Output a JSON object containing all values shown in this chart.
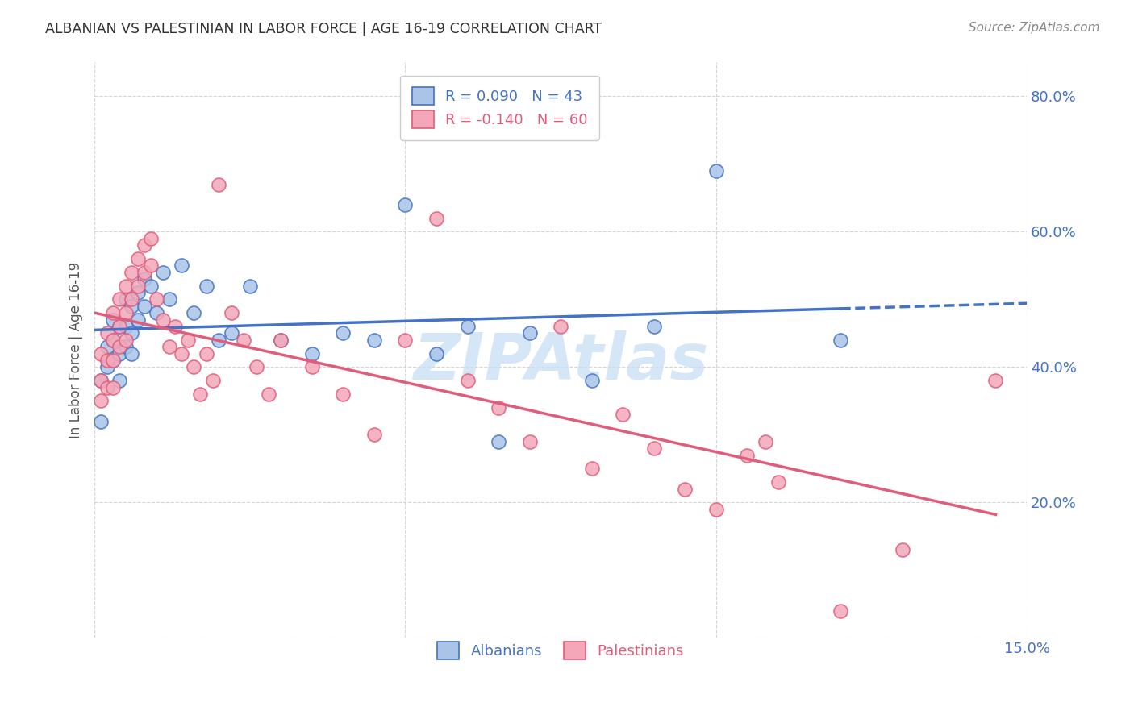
{
  "title": "ALBANIAN VS PALESTINIAN IN LABOR FORCE | AGE 16-19 CORRELATION CHART",
  "source": "Source: ZipAtlas.com",
  "ylabel_axis": "In Labor Force | Age 16-19",
  "xlim": [
    0.0,
    0.15
  ],
  "ylim": [
    0.0,
    0.85
  ],
  "albanian_R": 0.09,
  "albanian_N": 43,
  "palestinian_R": -0.14,
  "palestinian_N": 60,
  "bg_color": "#ffffff",
  "plot_bg_color": "#ffffff",
  "grid_color": "#cccccc",
  "albanian_color": "#aac4e8",
  "albanian_line_color": "#4472c4",
  "palestinian_color": "#f4a7b9",
  "palestinian_line_color": "#e05c7a",
  "watermark_color": "#c8dff5",
  "title_color": "#333333",
  "axis_label_color": "#4472c4",
  "albanian_x": [
    0.001,
    0.001,
    0.002,
    0.002,
    0.003,
    0.003,
    0.003,
    0.004,
    0.004,
    0.004,
    0.005,
    0.005,
    0.005,
    0.006,
    0.006,
    0.006,
    0.007,
    0.007,
    0.008,
    0.008,
    0.009,
    0.01,
    0.011,
    0.012,
    0.014,
    0.016,
    0.018,
    0.02,
    0.022,
    0.025,
    0.03,
    0.035,
    0.04,
    0.045,
    0.05,
    0.055,
    0.06,
    0.065,
    0.07,
    0.08,
    0.09,
    0.1,
    0.12
  ],
  "albanian_y": [
    0.38,
    0.32,
    0.43,
    0.4,
    0.47,
    0.44,
    0.41,
    0.46,
    0.42,
    0.38,
    0.5,
    0.46,
    0.43,
    0.49,
    0.45,
    0.42,
    0.51,
    0.47,
    0.53,
    0.49,
    0.52,
    0.48,
    0.54,
    0.5,
    0.55,
    0.48,
    0.52,
    0.44,
    0.45,
    0.52,
    0.44,
    0.42,
    0.45,
    0.44,
    0.64,
    0.42,
    0.46,
    0.29,
    0.45,
    0.38,
    0.46,
    0.69,
    0.44
  ],
  "palestinian_x": [
    0.001,
    0.001,
    0.001,
    0.002,
    0.002,
    0.002,
    0.003,
    0.003,
    0.003,
    0.003,
    0.004,
    0.004,
    0.004,
    0.005,
    0.005,
    0.005,
    0.006,
    0.006,
    0.007,
    0.007,
    0.008,
    0.008,
    0.009,
    0.009,
    0.01,
    0.011,
    0.012,
    0.013,
    0.014,
    0.015,
    0.016,
    0.017,
    0.018,
    0.019,
    0.02,
    0.022,
    0.024,
    0.026,
    0.028,
    0.03,
    0.035,
    0.04,
    0.045,
    0.05,
    0.055,
    0.06,
    0.065,
    0.07,
    0.075,
    0.08,
    0.085,
    0.09,
    0.095,
    0.1,
    0.105,
    0.108,
    0.11,
    0.12,
    0.13,
    0.145
  ],
  "palestinian_y": [
    0.42,
    0.38,
    0.35,
    0.45,
    0.41,
    0.37,
    0.48,
    0.44,
    0.41,
    0.37,
    0.5,
    0.46,
    0.43,
    0.52,
    0.48,
    0.44,
    0.54,
    0.5,
    0.56,
    0.52,
    0.58,
    0.54,
    0.59,
    0.55,
    0.5,
    0.47,
    0.43,
    0.46,
    0.42,
    0.44,
    0.4,
    0.36,
    0.42,
    0.38,
    0.67,
    0.48,
    0.44,
    0.4,
    0.36,
    0.44,
    0.4,
    0.36,
    0.3,
    0.44,
    0.62,
    0.38,
    0.34,
    0.29,
    0.46,
    0.25,
    0.33,
    0.28,
    0.22,
    0.19,
    0.27,
    0.29,
    0.23,
    0.04,
    0.13,
    0.38
  ]
}
